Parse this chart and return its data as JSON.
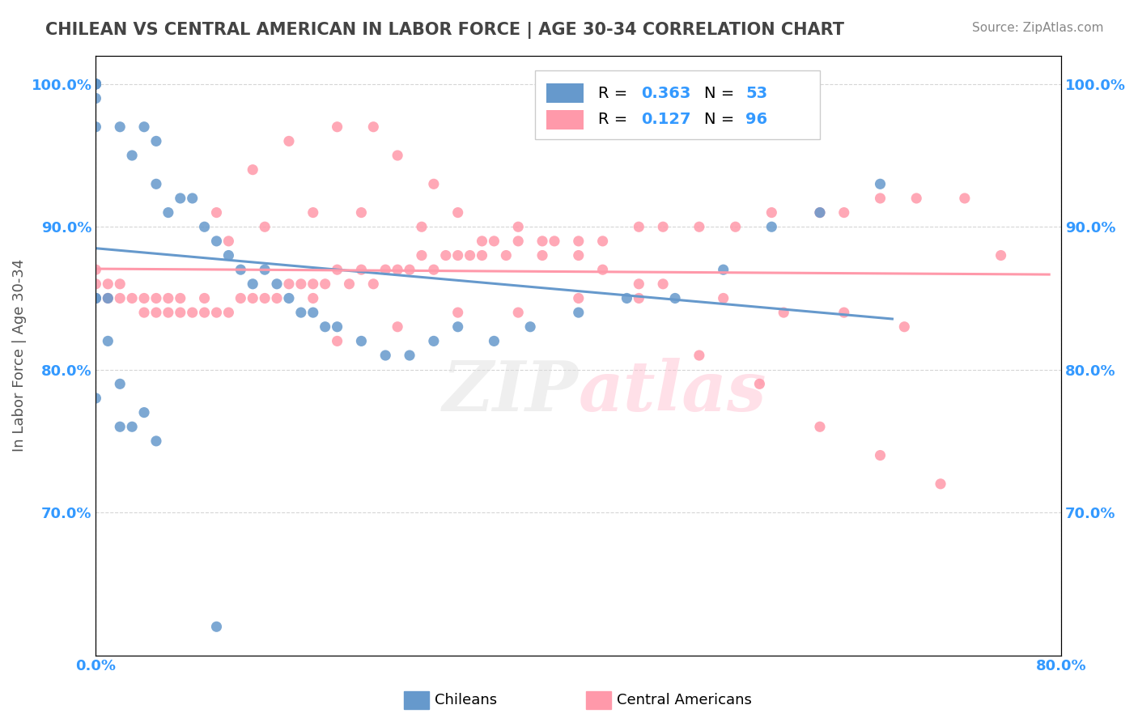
{
  "title": "CHILEAN VS CENTRAL AMERICAN IN LABOR FORCE | AGE 30-34 CORRELATION CHART",
  "source": "Source: ZipAtlas.com",
  "ylabel": "In Labor Force | Age 30-34",
  "xlim": [
    0.0,
    0.8
  ],
  "ylim": [
    0.6,
    1.02
  ],
  "xtick_labels": [
    "0.0%",
    "80.0%"
  ],
  "ytick_labels": [
    "70.0%",
    "80.0%",
    "90.0%",
    "100.0%"
  ],
  "ytick_positions": [
    0.7,
    0.8,
    0.9,
    1.0
  ],
  "legend_r1": "0.363",
  "legend_n1": "53",
  "legend_r2": "0.127",
  "legend_n2": "96",
  "blue_color": "#6699CC",
  "pink_color": "#FF99AA",
  "chilean_x": [
    0.0,
    0.0,
    0.0,
    0.0,
    0.0,
    0.0,
    0.0,
    0.0,
    0.02,
    0.03,
    0.04,
    0.05,
    0.05,
    0.06,
    0.07,
    0.08,
    0.09,
    0.1,
    0.11,
    0.12,
    0.13,
    0.14,
    0.15,
    0.16,
    0.17,
    0.18,
    0.19,
    0.2,
    0.22,
    0.24,
    0.26,
    0.28,
    0.3,
    0.33,
    0.36,
    0.4,
    0.44,
    0.48,
    0.52,
    0.56,
    0.6,
    0.65,
    0.0,
    0.0,
    0.01,
    0.01,
    0.02,
    0.02,
    0.0,
    0.03,
    0.04,
    0.05,
    0.1
  ],
  "chilean_y": [
    1.0,
    1.0,
    1.0,
    1.0,
    1.0,
    1.0,
    0.99,
    0.97,
    0.97,
    0.95,
    0.97,
    0.96,
    0.93,
    0.91,
    0.92,
    0.92,
    0.9,
    0.89,
    0.88,
    0.87,
    0.86,
    0.87,
    0.86,
    0.85,
    0.84,
    0.84,
    0.83,
    0.83,
    0.82,
    0.81,
    0.81,
    0.82,
    0.83,
    0.82,
    0.83,
    0.84,
    0.85,
    0.85,
    0.87,
    0.9,
    0.91,
    0.93,
    0.85,
    0.78,
    0.85,
    0.82,
    0.79,
    0.76,
    0.85,
    0.76,
    0.77,
    0.75,
    0.62
  ],
  "central_x": [
    0.0,
    0.0,
    0.0,
    0.01,
    0.01,
    0.02,
    0.02,
    0.03,
    0.04,
    0.04,
    0.05,
    0.05,
    0.06,
    0.06,
    0.07,
    0.07,
    0.08,
    0.09,
    0.09,
    0.1,
    0.11,
    0.12,
    0.13,
    0.14,
    0.15,
    0.16,
    0.17,
    0.18,
    0.18,
    0.19,
    0.2,
    0.21,
    0.22,
    0.23,
    0.24,
    0.25,
    0.26,
    0.27,
    0.28,
    0.29,
    0.3,
    0.31,
    0.32,
    0.33,
    0.34,
    0.35,
    0.37,
    0.38,
    0.4,
    0.42,
    0.45,
    0.47,
    0.5,
    0.53,
    0.56,
    0.6,
    0.62,
    0.65,
    0.68,
    0.72,
    0.75,
    0.1,
    0.13,
    0.16,
    0.2,
    0.23,
    0.25,
    0.28,
    0.3,
    0.35,
    0.4,
    0.45,
    0.5,
    0.55,
    0.6,
    0.65,
    0.7,
    0.11,
    0.14,
    0.18,
    0.22,
    0.27,
    0.32,
    0.37,
    0.42,
    0.47,
    0.52,
    0.57,
    0.62,
    0.67,
    0.2,
    0.25,
    0.3,
    0.35,
    0.4,
    0.45
  ],
  "central_y": [
    0.87,
    0.86,
    0.85,
    0.86,
    0.85,
    0.86,
    0.85,
    0.85,
    0.85,
    0.84,
    0.85,
    0.84,
    0.84,
    0.85,
    0.84,
    0.85,
    0.84,
    0.84,
    0.85,
    0.84,
    0.84,
    0.85,
    0.85,
    0.85,
    0.85,
    0.86,
    0.86,
    0.86,
    0.85,
    0.86,
    0.87,
    0.86,
    0.87,
    0.86,
    0.87,
    0.87,
    0.87,
    0.88,
    0.87,
    0.88,
    0.88,
    0.88,
    0.88,
    0.89,
    0.88,
    0.89,
    0.89,
    0.89,
    0.89,
    0.89,
    0.9,
    0.9,
    0.9,
    0.9,
    0.91,
    0.91,
    0.91,
    0.92,
    0.92,
    0.92,
    0.88,
    0.91,
    0.94,
    0.96,
    0.97,
    0.97,
    0.95,
    0.93,
    0.91,
    0.9,
    0.88,
    0.85,
    0.81,
    0.79,
    0.76,
    0.74,
    0.72,
    0.89,
    0.9,
    0.91,
    0.91,
    0.9,
    0.89,
    0.88,
    0.87,
    0.86,
    0.85,
    0.84,
    0.84,
    0.83,
    0.82,
    0.83,
    0.84,
    0.84,
    0.85,
    0.86
  ]
}
